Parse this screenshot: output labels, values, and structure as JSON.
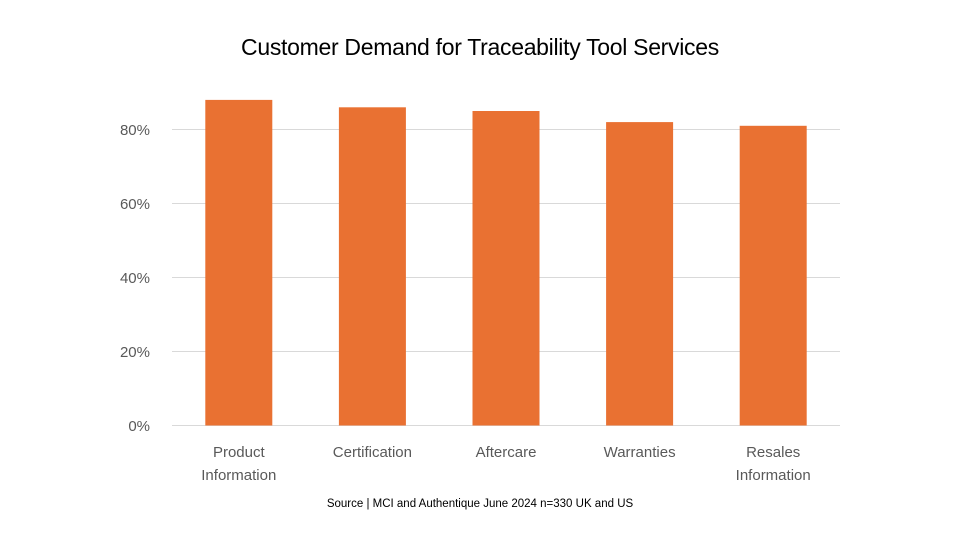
{
  "chart_data": {
    "type": "bar",
    "title": "Customer Demand for Traceability Tool Services",
    "categories": [
      [
        "Product",
        "Information"
      ],
      [
        "Certification"
      ],
      [
        "Aftercare"
      ],
      [
        "Warranties"
      ],
      [
        "Resales",
        "Information"
      ]
    ],
    "values": [
      88,
      86,
      85,
      82,
      81
    ],
    "yticks": [
      "0%",
      "20%",
      "40%",
      "60%",
      "80%"
    ],
    "ylim": [
      0,
      100
    ],
    "grid": true,
    "xlabel": "",
    "ylabel": "",
    "colors": {
      "bar": "#E97132",
      "grid": "#D9D9D9",
      "tick_text": "#595959"
    }
  },
  "source": "Source | MCI and Authentique June 2024 n=330 UK and US"
}
